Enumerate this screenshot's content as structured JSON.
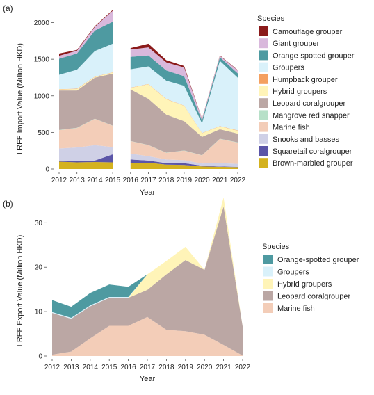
{
  "chart_data": [
    {
      "type": "area",
      "stacked": true,
      "panel_label": "(a)",
      "xlabel": "Year",
      "ylabel": "LRFF Import Value (Million HKD)",
      "x": [
        2012,
        2013,
        2014,
        2015,
        2016,
        2017,
        2018,
        2019,
        2020,
        2021,
        2022
      ],
      "x_ticks": [
        "2012",
        "2013",
        "2014",
        "2015",
        "2016",
        "2017",
        "2018",
        "2019",
        "2020",
        "2021",
        "2022"
      ],
      "ylim": [
        0,
        2100
      ],
      "y_ticks": [
        0,
        500,
        1000,
        1500,
        2000
      ],
      "y_tick_labels": [
        "0",
        "500",
        "1000",
        "1500",
        "2000"
      ],
      "grid": false,
      "legend_title": "Species",
      "legend_position": "right",
      "gaps_after": [
        "2015"
      ],
      "series": [
        {
          "name": "Brown-marbled grouper",
          "color": "#d4b21f",
          "values": [
            100,
            90,
            95,
            90,
            80,
            85,
            60,
            55,
            35,
            30,
            25
          ]
        },
        {
          "name": "Squaretail coralgrouper",
          "color": "#5b55a8",
          "values": [
            10,
            15,
            20,
            110,
            50,
            30,
            20,
            25,
            10,
            5,
            5
          ]
        },
        {
          "name": "Snooks and basses",
          "color": "#cfd0e6",
          "values": [
            170,
            190,
            210,
            100,
            80,
            60,
            50,
            40,
            30,
            45,
            40
          ]
        },
        {
          "name": "Marine fish",
          "color": "#f3cdb8",
          "values": [
            250,
            265,
            360,
            290,
            170,
            150,
            90,
            130,
            110,
            330,
            290
          ]
        },
        {
          "name": "Mangrove red snapper",
          "color": "#b7e0c8",
          "values": [
            3,
            3,
            3,
            3,
            3,
            3,
            3,
            3,
            3,
            3,
            3
          ]
        },
        {
          "name": "Leopard coralgrouper",
          "color": "#bba7a4",
          "values": [
            540,
            510,
            560,
            710,
            705,
            630,
            520,
            400,
            250,
            130,
            120
          ]
        },
        {
          "name": "Hybrid groupers",
          "color": "#fff4b8",
          "values": [
            15,
            20,
            10,
            15,
            20,
            200,
            210,
            210,
            50,
            40,
            40
          ]
        },
        {
          "name": "Humpback grouper",
          "color": "#f4a060",
          "values": [
            4,
            4,
            4,
            4,
            4,
            4,
            4,
            4,
            4,
            4,
            4
          ]
        },
        {
          "name": "Groupers",
          "color": "#d9f1fa",
          "values": [
            195,
            260,
            350,
            390,
            250,
            240,
            250,
            270,
            130,
            890,
            720
          ]
        },
        {
          "name": "Orange-spotted grouper",
          "color": "#4e9aa1",
          "values": [
            220,
            220,
            280,
            300,
            170,
            150,
            140,
            130,
            40,
            50,
            60
          ]
        },
        {
          "name": "Giant grouper",
          "color": "#d9b8dc",
          "values": [
            40,
            40,
            50,
            150,
            100,
            110,
            110,
            120,
            20,
            20,
            40
          ]
        },
        {
          "name": "Camouflage grouper",
          "color": "#8b1a1a",
          "values": [
            30,
            10,
            10,
            10,
            20,
            50,
            30,
            20,
            5,
            5,
            5
          ]
        }
      ],
      "legend_order": [
        "Camouflage grouper",
        "Giant grouper",
        "Orange-spotted grouper",
        "Groupers",
        "Humpback grouper",
        "Hybrid groupers",
        "Leopard coralgrouper",
        "Mangrove red snapper",
        "Marine fish",
        "Snooks and basses",
        "Squaretail coralgrouper",
        "Brown-marbled grouper"
      ]
    },
    {
      "type": "area",
      "stacked": true,
      "panel_label": "(b)",
      "xlabel": "Year",
      "ylabel": "LRFF Export Value (Million HKD)",
      "x": [
        2012,
        2013,
        2014,
        2015,
        2016,
        2017,
        2018,
        2019,
        2020,
        2021,
        2022
      ],
      "x_ticks": [
        "2012",
        "2013",
        "2014",
        "2015",
        "2016",
        "2017",
        "2018",
        "2019",
        "2020",
        "2021",
        "2022"
      ],
      "ylim": [
        0,
        36
      ],
      "y_ticks": [
        0,
        10,
        20,
        30
      ],
      "y_tick_labels": [
        "0",
        "10",
        "20",
        "30"
      ],
      "grid": false,
      "legend_title": "Species",
      "legend_position": "right",
      "series": [
        {
          "name": "Marine fish",
          "color": "#f3cdb8",
          "values": [
            0.3,
            1.0,
            4.0,
            6.8,
            6.8,
            8.8,
            5.9,
            5.6,
            4.8,
            2.5,
            0.1
          ]
        },
        {
          "name": "Leopard coralgrouper",
          "color": "#bba7a4",
          "values": [
            9.4,
            7.4,
            7.2,
            6.3,
            6.3,
            6.1,
            12.5,
            16.0,
            14.6,
            31.2,
            6.6
          ]
        },
        {
          "name": "Hybrid groupers",
          "color": "#fff4b8",
          "values": [
            0,
            0,
            0,
            0,
            0,
            3.5,
            3.0,
            3.0,
            0,
            2.0,
            0
          ]
        },
        {
          "name": "Groupers",
          "color": "#d9f1fa",
          "values": [
            0.2,
            0.2,
            0.2,
            0.2,
            0.2,
            0,
            0,
            0,
            0,
            0,
            0
          ]
        },
        {
          "name": "Orange-spotted grouper",
          "color": "#4e9aa1",
          "values": [
            2.7,
            2.5,
            2.8,
            2.8,
            2.3,
            0,
            0,
            0,
            0,
            0,
            0
          ]
        }
      ],
      "legend_order": [
        "Orange-spotted grouper",
        "Groupers",
        "Hybrid groupers",
        "Leopard coralgrouper",
        "Marine fish"
      ]
    }
  ]
}
